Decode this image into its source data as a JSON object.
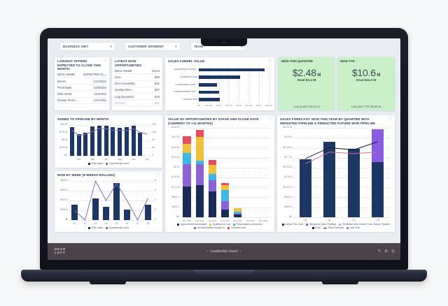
{
  "filters": [
    {
      "label": "BUSINESS UNIT"
    },
    {
      "label": "CUSTOMER SEGMENT"
    },
    {
      "label": "TEAM"
    }
  ],
  "icons": {
    "info": "ⓘ",
    "chevron_down": "▾",
    "pencil": "✎",
    "gear": "⚙",
    "menu": "☰"
  },
  "largest_offers": {
    "title": "LARGEST OFFERS EXPECTED TO CLOSE THIS MONTH",
    "headers": [
      "DEAL NAME",
      "EXPECTED CL..."
    ],
    "rows": [
      [
        "Micres",
        "11/23/202"
      ],
      [
        "Proof Mark",
        "11/05/202"
      ],
      [
        "Web Servic",
        "11/11/202"
      ],
      [
        "Onway Techn...",
        "11/17/202"
      ]
    ]
  },
  "latest_won": {
    "title": "LATEST WON OPPORTUNITIES",
    "headers": [
      "DEAL NAME",
      "VALU"
    ],
    "muted_last": true,
    "rows": [
      [
        "Zero",
        "$28"
      ],
      [
        "Zim Accounting",
        "$42"
      ],
      [
        "Quality Elem...",
        "$37"
      ],
      [
        "Logi Dynamics",
        "$75"
      ],
      [
        "McTavel",
        "$84"
      ]
    ]
  },
  "won_this_quarter": {
    "label": "WON THIS QUARTER",
    "value": "$2.48",
    "unit": "M",
    "goal": "Goal $3.4 M",
    "footer": "Last quarter $3.15 M"
  },
  "won_ytd": {
    "label": "WON YTD",
    "value": "$10.6",
    "unit": "M",
    "goal": "Goal $11.2 M",
    "footer": "Last year YTD $9.58 M"
  },
  "bottom_bar": {
    "logo_line1": "DEAR",
    "logo_line2": "LUCY",
    "prev": "‹",
    "title": "Leadership report",
    "next": "›"
  },
  "chart_data": [
    {
      "type": "bar",
      "horizontal": true,
      "title": "SALES FUNNEL VALUE",
      "categories": [
        "Appointment sched...",
        "Qualified to buy",
        "Presentation sche...",
        "Decisionmaker bou...",
        "Contract sent"
      ],
      "values": [
        3.3,
        2.05,
        0.9,
        1.0,
        1.05
      ],
      "xmax": 3.5,
      "xticks": [
        "$0",
        "$0.5 M",
        "$1 M",
        "$1.5 M",
        "$2 M",
        "$2.5 M",
        "$3 M",
        "$3.5 M"
      ],
      "bar_color": "#1d3765"
    },
    {
      "type": "bar",
      "title": "ADDED TO PIPELINE BY MONTH",
      "categories": [
        "Jan",
        "Feb",
        "Mar",
        "Apr",
        "May",
        "Jun",
        "Jul",
        "Aug",
        "Sep",
        "Oct",
        "Nov",
        "Dec"
      ],
      "x_labels": [
        "",
        "Feb",
        "",
        "Apr",
        "",
        "Jun",
        "",
        "Aug",
        "",
        "Oct",
        "",
        "Dec"
      ],
      "ymax": 10,
      "left_ticks": [
        "$10 M",
        "$7.5 M",
        "$5 M",
        "$2.5 M",
        "$0"
      ],
      "right_ticks": [
        "180",
        "135",
        "90",
        "45",
        "0"
      ],
      "series": [
        {
          "name": "Total value",
          "color": "#1d3765",
          "values": [
            9.3,
            6.9,
            7.5,
            9.4,
            9.8,
            9.8,
            9.2,
            9.1,
            9.2,
            9.8,
            7.4,
            0
          ]
        }
      ],
      "lines": [
        {
          "name": "Opportunity count",
          "color": "#7e6bc4",
          "max": 180,
          "values": [
            150,
            118,
            126,
            142,
            160,
            158,
            150,
            150,
            148,
            158,
            138,
            126
          ]
        }
      ],
      "legend": [
        {
          "label": "Total value",
          "color": "#1d3765"
        },
        {
          "label": "Opportunity count",
          "color": "#7e6bc4"
        }
      ]
    },
    {
      "type": "bar",
      "title": "VALUE OF OPPORTUNITIES BY STAGE AND CLOSE DATE (CURRENT TO +11 MONTHS)",
      "categories": [
        "Nov 2025",
        "Dec 2025",
        "Jan 2026",
        "Feb 2026",
        "Mar 2026",
        "Apr 2026",
        "May 2026"
      ],
      "x_labels": [
        "Nov 2025",
        "Dec 2025",
        "Jan 2026",
        "Feb 2026",
        "Mar 2026",
        "Apr 2026",
        "May 2026"
      ],
      "ymax": 3.6,
      "left_ticks": [
        "$3.6 M",
        "$3.2 M",
        "$2.8 M",
        "$2.4 M",
        "$2 M",
        "$1.6 M",
        "$1.2 M",
        "$800 k",
        "$400 k",
        "$0"
      ],
      "series": [
        {
          "name": "Appointment scheduled",
          "color": "#1a2c55",
          "values": [
            1.25,
            1.28,
            1.05,
            0.3,
            0.1,
            0,
            0
          ]
        },
        {
          "name": "Decisionmaker bought in",
          "color": "#8a63d6",
          "values": [
            0.9,
            0.85,
            0.45,
            0.35,
            0.05,
            0,
            0
          ]
        },
        {
          "name": "Presentation scheduled",
          "color": "#3fb5e8",
          "values": [
            0.45,
            0.15,
            0.25,
            0.45,
            0.08,
            0,
            0
          ]
        },
        {
          "name": "Qualified to buy",
          "color": "#f0c23c",
          "values": [
            0.35,
            0.95,
            0.35,
            0.18,
            0.12,
            0,
            0
          ]
        },
        {
          "name": "Contract sent",
          "color": "#e74c5f",
          "values": [
            0.33,
            0.3,
            0.22,
            0.1,
            0,
            0,
            0
          ]
        }
      ],
      "legend": [
        {
          "label": "Appointment scheduled",
          "color": "#1a2c55"
        },
        {
          "label": "Qualified to buy",
          "color": "#f0c23c"
        },
        {
          "label": "Presentation scheduled",
          "color": "#3fb5e8"
        },
        {
          "label": "Decisionmaker bought in",
          "color": "#8a63d6"
        },
        {
          "label": "Contract sent",
          "color": "#e74c5f"
        }
      ]
    },
    {
      "type": "bar",
      "title": "SALES FORECAST: WON THIS YEAR BY QUARTER WITH WEIGHTED PIPELINE & PREDICTED FUTURE WON PIPELINE",
      "categories": [
        "Q1",
        "Q2",
        "Q3",
        "Q4"
      ],
      "x_labels": [
        "Q1",
        "Q2",
        "Q3",
        "Q4"
      ],
      "ymax": 4.05,
      "left_ticks": [
        "$4.05 M",
        "$3.6 M",
        "$3.15 M",
        "$2.7 M",
        "$2.25 M",
        "$1.8 M",
        "$1.35 M",
        "$900 k",
        "$450 k",
        "$0"
      ],
      "series": [
        {
          "name": "Actual This Year",
          "color": "#1d3765",
          "values": [
            2.62,
            3.42,
            3.12,
            2.5
          ]
        },
        {
          "name": "Weighted Open Pipeline",
          "color": "#8a5ce0",
          "values": [
            0,
            0,
            0,
            1.5
          ]
        }
      ],
      "lines": [
        {
          "name": "Goal",
          "color": "#1d1d35",
          "values": [
            2.65,
            3.15,
            3.05,
            3.42
          ]
        },
        {
          "name": "Last Year",
          "color": "#cf6d93",
          "values": [
            2.42,
            2.95,
            2.88,
            2.95
          ]
        }
      ],
      "legend": [
        {
          "label": "Actual This Year",
          "color": "#1d3765"
        },
        {
          "label": "Weighted Open Pipeline",
          "color": "#8a5ce0"
        },
        {
          "label": "Predicted Won Deals From Future Pipeline",
          "color": "#c0abe8"
        },
        {
          "label": "Goal",
          "color": "#1d1d35"
        },
        {
          "label": "Total Forecast",
          "color": "#1d1d35",
          "shape": "line"
        },
        {
          "label": "Last Year",
          "color": "#cf6d93"
        }
      ]
    },
    {
      "type": "bar",
      "title": "WON BY WEEK (8 WEEKS ROLLING)",
      "categories": [
        "41",
        "42",
        "43",
        "44",
        "45",
        "46",
        "47",
        "48"
      ],
      "x_labels": [
        "41",
        "42",
        "43",
        "44",
        "45",
        "46",
        "47",
        "48"
      ],
      "ymax": 600,
      "left_ticks": [
        "$600 k",
        "$450 k",
        "$300 k",
        "$150 k",
        "$0"
      ],
      "right_ticks": [
        "8",
        "6",
        "4",
        "2",
        "0"
      ],
      "series": [
        {
          "name": "Total value",
          "color": "#1d3765",
          "values": [
            230,
            0,
            330,
            200,
            560,
            160,
            0,
            230
          ]
        }
      ],
      "lines": [
        {
          "name": "Opportunity count",
          "color": "#7e6bc4",
          "max": 8,
          "values": [
            2,
            0,
            8,
            4,
            7.5,
            4,
            0,
            4.5
          ]
        }
      ],
      "legend": [
        {
          "label": "Total value",
          "color": "#1d3765"
        },
        {
          "label": "Opportunity count",
          "color": "#7e6bc4"
        }
      ]
    }
  ]
}
